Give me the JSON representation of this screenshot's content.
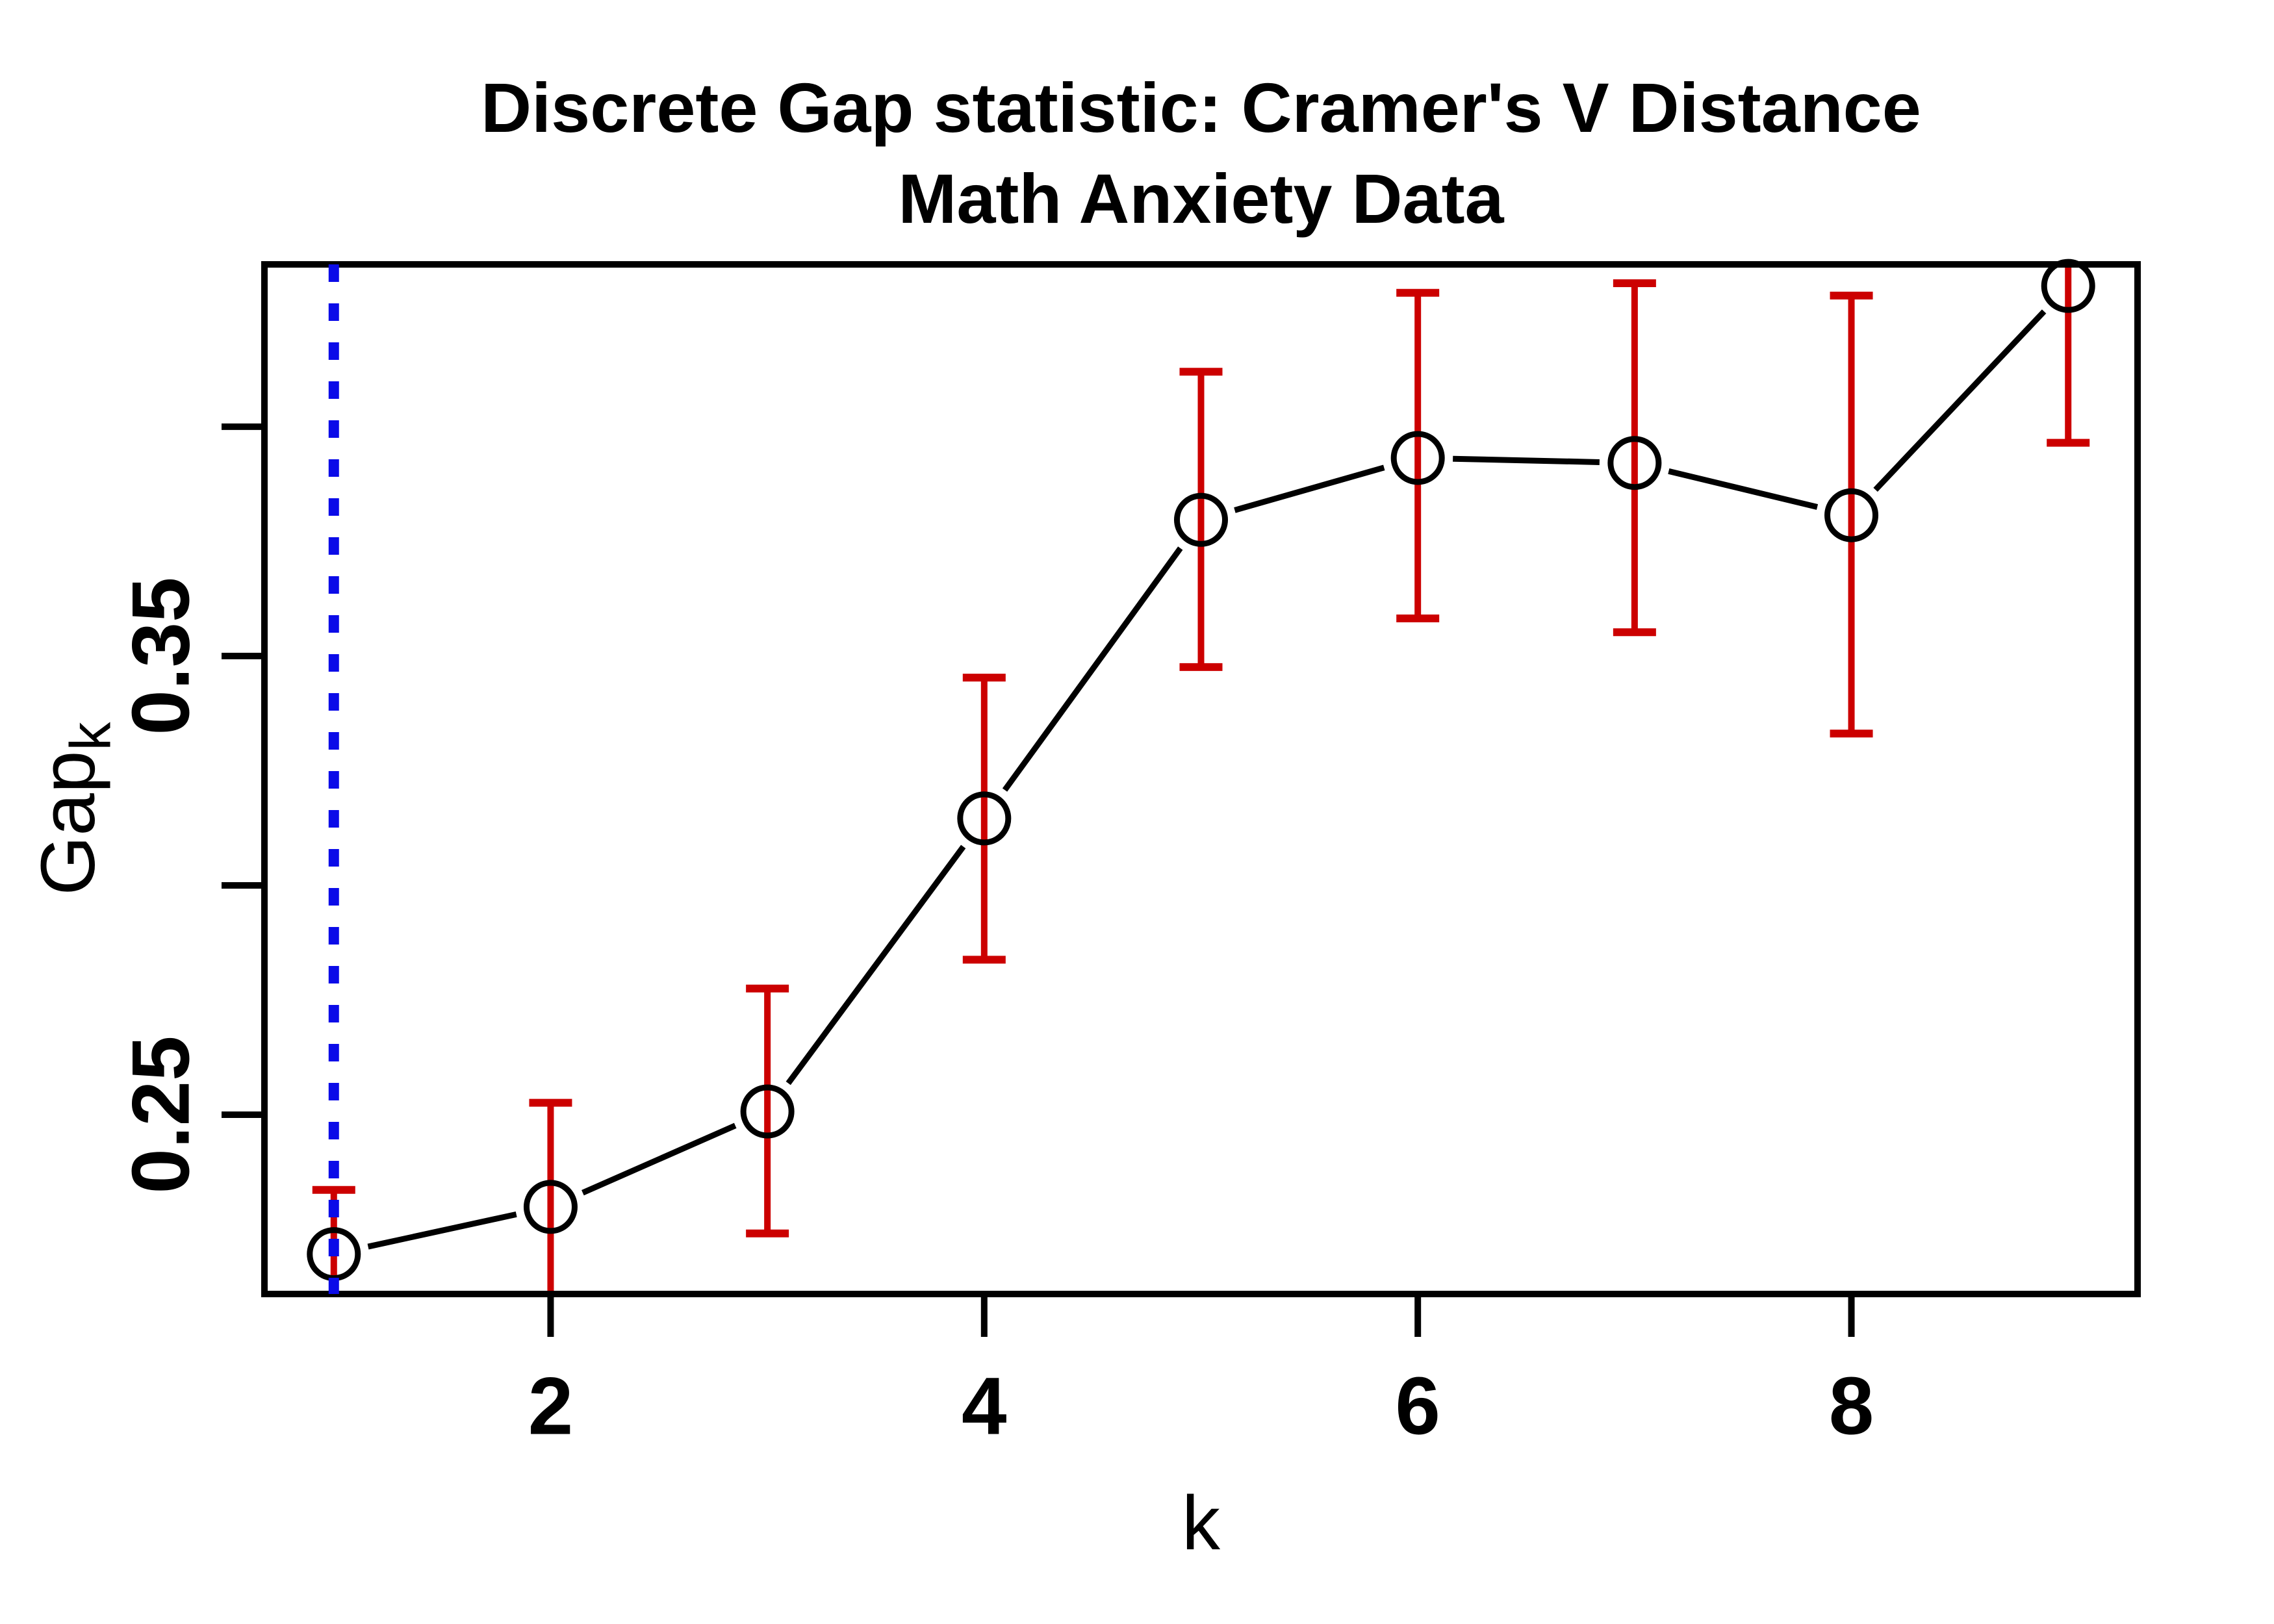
{
  "title": {
    "line1": "Discrete Gap statistic: Cramer's V Distance",
    "line2": "Math Anxiety Data"
  },
  "axes": {
    "x_label": "k",
    "y_label_base": "Gap",
    "y_label_sub": "k"
  },
  "chart_data": {
    "type": "line",
    "title": "Discrete Gap statistic: Cramer's V Distance",
    "subtitle": "Math Anxiety Data",
    "xlabel": "k",
    "ylabel": "Gap_k",
    "x": [
      1,
      2,
      3,
      4,
      5,
      6,
      7,
      8,
      9
    ],
    "gap": [
      0.2196,
      0.2299,
      0.2507,
      0.3146,
      0.3797,
      0.3932,
      0.3921,
      0.3807,
      0.4307
    ],
    "err_lo": [
      0.2056,
      0.2073,
      0.2241,
      0.2838,
      0.3476,
      0.3582,
      0.3552,
      0.3331,
      0.3965
    ],
    "err_hi": [
      0.2336,
      0.2526,
      0.2775,
      0.3453,
      0.412,
      0.4292,
      0.4313,
      0.4286,
      0.465
    ],
    "xlim": [
      0.68,
      9.32
    ],
    "ylim": [
      0.2109,
      0.4354
    ],
    "x_ticks": [
      {
        "v": 2,
        "label": "2"
      },
      {
        "v": 4,
        "label": "4"
      },
      {
        "v": 6,
        "label": "6"
      },
      {
        "v": 8,
        "label": "8"
      }
    ],
    "y_ticks": [
      {
        "v": 0.25,
        "label": "0.25"
      },
      {
        "v": 0.3,
        "label": ""
      },
      {
        "v": 0.35,
        "label": "0.35"
      },
      {
        "v": 0.4,
        "label": ""
      }
    ],
    "vline": {
      "x": 1,
      "style": "dotted"
    },
    "legend": "none",
    "grid": false,
    "colors": {
      "points_line": "#000000",
      "error_bars": "#CC0000",
      "vline": "#0B0BE8",
      "background": "#ffffff"
    }
  }
}
